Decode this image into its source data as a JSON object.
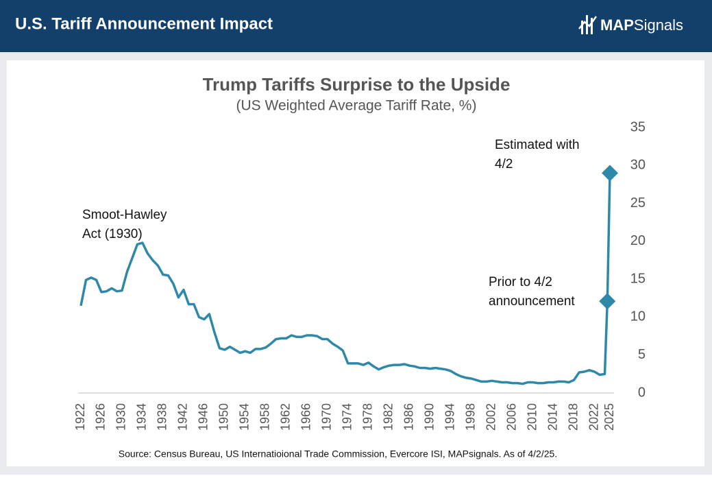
{
  "header": {
    "title": "U.S. Tariff Announcement Impact",
    "logo": [
      "MAP",
      "Signals"
    ]
  },
  "chart_data": {
    "type": "line",
    "title": "Trump Tariffs Surprise to the Upside",
    "subtitle": "(US Weighted Average Tariff Rate, %)",
    "source": "Source: Census Bureau, US Internatioional Trade Commission, Evercore ISI, MAPsignals. As of 4/2/25.",
    "x": [
      1922,
      1923,
      1924,
      1925,
      1926,
      1927,
      1928,
      1929,
      1930,
      1931,
      1932,
      1933,
      1934,
      1935,
      1936,
      1937,
      1938,
      1939,
      1940,
      1941,
      1942,
      1943,
      1944,
      1945,
      1946,
      1947,
      1948,
      1949,
      1950,
      1951,
      1952,
      1953,
      1954,
      1955,
      1956,
      1957,
      1958,
      1959,
      1960,
      1961,
      1962,
      1963,
      1964,
      1965,
      1966,
      1967,
      1968,
      1969,
      1970,
      1971,
      1972,
      1973,
      1974,
      1975,
      1976,
      1977,
      1978,
      1979,
      1980,
      1981,
      1982,
      1983,
      1984,
      1985,
      1986,
      1987,
      1988,
      1989,
      1990,
      1991,
      1992,
      1993,
      1994,
      1995,
      1996,
      1997,
      1998,
      1999,
      2000,
      2001,
      2002,
      2003,
      2004,
      2005,
      2006,
      2007,
      2008,
      2009,
      2010,
      2011,
      2012,
      2013,
      2014,
      2015,
      2016,
      2017,
      2018,
      2019,
      2020,
      2021,
      2022,
      2023,
      2024,
      2024.5,
      2025
    ],
    "series": [
      {
        "name": "US Weighted Average Tariff Rate",
        "color": "#2e88a8",
        "values": [
          11.5,
          14.9,
          15.2,
          14.9,
          13.3,
          13.4,
          13.8,
          13.4,
          13.5,
          16,
          17.8,
          19.6,
          19.8,
          18.4,
          17.5,
          16.8,
          15.6,
          15.5,
          14.4,
          12.6,
          13.6,
          11.7,
          11.7,
          10,
          9.7,
          10.4,
          8,
          5.9,
          5.7,
          6.1,
          5.7,
          5.3,
          5.5,
          5.3,
          5.8,
          5.8,
          6,
          6.5,
          7.1,
          7.2,
          7.2,
          7.6,
          7.4,
          7.4,
          7.6,
          7.6,
          7.5,
          7.1,
          7.1,
          6.5,
          6.1,
          5.6,
          3.9,
          3.9,
          3.9,
          3.7,
          4,
          3.5,
          3.1,
          3.4,
          3.6,
          3.7,
          3.7,
          3.8,
          3.6,
          3.5,
          3.3,
          3.3,
          3.2,
          3.3,
          3.2,
          3.1,
          2.9,
          2.5,
          2.2,
          2,
          1.9,
          1.7,
          1.5,
          1.5,
          1.6,
          1.5,
          1.4,
          1.4,
          1.3,
          1.3,
          1.2,
          1.4,
          1.4,
          1.3,
          1.3,
          1.4,
          1.4,
          1.5,
          1.5,
          1.4,
          1.7,
          2.7,
          2.8,
          3,
          2.8,
          2.4,
          2.5,
          12.1,
          29
        ],
        "diamond_markers": [
          103,
          104
        ]
      }
    ],
    "xlim": [
      1922,
      2025
    ],
    "xticks": [
      1922,
      1926,
      1930,
      1934,
      1938,
      1942,
      1946,
      1950,
      1954,
      1958,
      1962,
      1966,
      1970,
      1974,
      1978,
      1982,
      1986,
      1990,
      1994,
      1998,
      2002,
      2006,
      2010,
      2014,
      2018,
      2022,
      2025
    ],
    "ylim": [
      0,
      35
    ],
    "yticks": [
      0,
      5,
      10,
      15,
      20,
      25,
      30,
      35
    ],
    "grid": false,
    "annotations": [
      {
        "lines": [
          "Smoot-Hawley",
          "Act (1930)"
        ]
      },
      {
        "lines": [
          "Estimated with",
          "4/2"
        ]
      },
      {
        "lines": [
          "Prior to 4/2",
          "announcement"
        ]
      }
    ]
  }
}
